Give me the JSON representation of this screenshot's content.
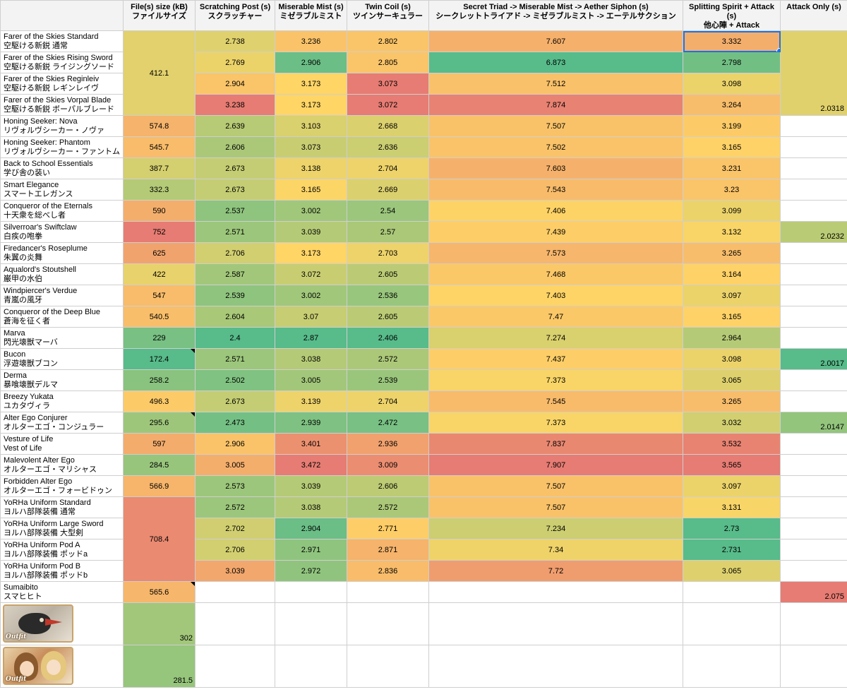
{
  "headers": {
    "name": "",
    "size_line1": "File(s) size (kB)",
    "size_line2": "ファイルサイズ",
    "scratch_line1": "Scratching Post (s)",
    "scratch_line2": "スクラッチャー",
    "mist_line1": "Miserable Mist  (s)",
    "mist_line2": "ミゼラブルミスト",
    "twin_line1": "Twin Coil (s)",
    "twin_line2": "ツインサーキュラー",
    "triad_line1": "Secret Triad -> Miserable Mist -> Aether Siphon (s)",
    "triad_line2": "シークレットトライアド -> ミゼラブルミスト -> エーテルサクション",
    "split_line1": "Splitting Spirit + Attack (s)",
    "split_line2": "他心陣 + Attack",
    "attack_line1": "Attack Only (s)"
  },
  "rows": [
    {
      "name_en": "Farer of the Skies Standard",
      "name_jp": "空駆ける新鋭 通常",
      "scratch": "2.738",
      "mist": "3.236",
      "twin": "2.802",
      "triad": "7.607",
      "split": "3.332"
    },
    {
      "name_en": "Farer of the Skies Rising Sword",
      "name_jp": "空駆ける新鋭 ライジングソード",
      "scratch": "2.769",
      "mist": "2.906",
      "twin": "2.805",
      "triad": "6.873",
      "split": "2.798"
    },
    {
      "name_en": "Farer of the Skies Reginleiv",
      "name_jp": "空駆ける新鋭 レギンレイヴ",
      "scratch": "2.904",
      "mist": "3.173",
      "twin": "3.073",
      "triad": "7.512",
      "split": "3.098"
    },
    {
      "name_en": "Farer of the Skies Vorpal Blade",
      "name_jp": "空駆ける新鋭 ボーパルブレード",
      "scratch": "3.238",
      "mist": "3.173",
      "twin": "3.072",
      "triad": "7.874",
      "split": "3.264"
    },
    {
      "name_en": "Honing Seeker: Nova",
      "name_jp": "リヴォルヴシーカー・ノヴァ",
      "size": "574.8",
      "scratch": "2.639",
      "mist": "3.103",
      "twin": "2.668",
      "triad": "7.507",
      "split": "3.199"
    },
    {
      "name_en": "Honing Seeker: Phantom",
      "name_jp": "リヴォルヴシーカー・ファントム",
      "size": "545.7",
      "scratch": "2.606",
      "mist": "3.073",
      "twin": "2.636",
      "triad": "7.502",
      "split": "3.165"
    },
    {
      "name_en": "Back to School Essentials",
      "name_jp": "学び舎の装い",
      "size": "387.7",
      "scratch": "2.673",
      "mist": "3.138",
      "twin": "2.704",
      "triad": "7.603",
      "split": "3.231"
    },
    {
      "name_en": "Smart Elegance",
      "name_jp": "スマートエレガンス",
      "size": "332.3",
      "scratch": "2.673",
      "mist": "3.165",
      "twin": "2.669",
      "triad": "7.543",
      "split": "3.23"
    },
    {
      "name_en": "Conqueror of the Eternals",
      "name_jp": "十天衆を総べし者",
      "size": "590",
      "scratch": "2.537",
      "mist": "3.002",
      "twin": "2.54",
      "triad": "7.406",
      "split": "3.099"
    },
    {
      "name_en": "Silverroar's Swiftclaw",
      "name_jp": "白疾の咆拳",
      "size": "752",
      "scratch": "2.571",
      "mist": "3.039",
      "twin": "2.57",
      "triad": "7.439",
      "split": "3.132",
      "attack": "2.0232"
    },
    {
      "name_en": "Firedancer's Roseplume",
      "name_jp": "朱翼の炎舞",
      "size": "625",
      "scratch": "2.706",
      "mist": "3.173",
      "twin": "2.703",
      "triad": "7.573",
      "split": "3.265"
    },
    {
      "name_en": "Aqualord's Stoutshell",
      "name_jp": "巌甲の水伯",
      "size": "422",
      "scratch": "2.587",
      "mist": "3.072",
      "twin": "2.605",
      "triad": "7.468",
      "split": "3.164"
    },
    {
      "name_en": "Windpiercer's Verdue",
      "name_jp": "青嵐の風牙",
      "size": "547",
      "scratch": "2.539",
      "mist": "3.002",
      "twin": "2.536",
      "triad": "7.403",
      "split": "3.097"
    },
    {
      "name_en": "Conqueror of the Deep Blue",
      "name_jp": "蒼海を征く者",
      "size": "540.5",
      "scratch": "2.604",
      "mist": "3.07",
      "twin": "2.605",
      "triad": "7.47",
      "split": "3.165"
    },
    {
      "name_en": "Marva",
      "name_jp": "閃光壊獣マーバ",
      "size": "229",
      "scratch": "2.4",
      "mist": "2.87",
      "twin": "2.406",
      "triad": "7.274",
      "split": "2.964"
    },
    {
      "name_en": "Bucon",
      "name_jp": "浮遊壊獣ブコン",
      "size": "172.4",
      "scratch": "2.571",
      "mist": "3.038",
      "twin": "2.572",
      "triad": "7.437",
      "split": "3.098",
      "attack": "2.0017"
    },
    {
      "name_en": "Derma",
      "name_jp": "暴喰壊獣デルマ",
      "size": "258.2",
      "scratch": "2.502",
      "mist": "3.005",
      "twin": "2.539",
      "triad": "7.373",
      "split": "3.065"
    },
    {
      "name_en": "Breezy Yukata",
      "name_jp": "ユカタヴィラ",
      "size": "496.3",
      "scratch": "2.673",
      "mist": "3.139",
      "twin": "2.704",
      "triad": "7.545",
      "split": "3.265"
    },
    {
      "name_en": "Alter Ego Conjurer",
      "name_jp": "オルターエゴ・コンジュラー",
      "size": "295.6",
      "scratch": "2.473",
      "mist": "2.939",
      "twin": "2.472",
      "triad": "7.373",
      "split": "3.032",
      "attack": "2.0147"
    },
    {
      "name_en": "Vesture of Life",
      "name_jp": "Vest of Life",
      "size": "597",
      "scratch": "2.906",
      "mist": "3.401",
      "twin": "2.936",
      "triad": "7.837",
      "split": "3.532"
    },
    {
      "name_en": "Malevolent Alter Ego",
      "name_jp": "オルターエゴ・マリシャス",
      "size": "284.5",
      "scratch": "3.005",
      "mist": "3.472",
      "twin": "3.009",
      "triad": "7.907",
      "split": "3.565"
    },
    {
      "name_en": "Forbidden Alter Ego",
      "name_jp": "オルターエゴ・フォービドゥン",
      "size": "566.9",
      "scratch": "2.573",
      "mist": "3.039",
      "twin": "2.606",
      "triad": "7.507",
      "split": "3.097"
    },
    {
      "name_en": "YoRHa Uniform Standard",
      "name_jp": "ヨルハ部隊装備 通常",
      "scratch": "2.572",
      "mist": "3.038",
      "twin": "2.572",
      "triad": "7.507",
      "split": "3.131"
    },
    {
      "name_en": "YoRHa Uniform Large Sword",
      "name_jp": "ヨルハ部隊装備 大型剣",
      "scratch": "2.702",
      "mist": "2.904",
      "twin": "2.771",
      "triad": "7.234",
      "split": "2.73"
    },
    {
      "name_en": "YoRHa Uniform Pod A",
      "name_jp": "ヨルハ部隊装備 ポッドa",
      "scratch": "2.706",
      "mist": "2.971",
      "twin": "2.871",
      "triad": "7.34",
      "split": "2.731"
    },
    {
      "name_en": "YoRHa Uniform Pod B",
      "name_jp": "ヨルハ部隊装備 ポッドb",
      "scratch": "3.039",
      "mist": "2.972",
      "twin": "2.836",
      "triad": "7.72",
      "split": "3.065"
    },
    {
      "name_en": "Sumaibito",
      "name_jp": "スマヒヒト",
      "size": "565.6",
      "attack": "2.075"
    }
  ],
  "merged": {
    "farer_size": "412.1",
    "farer_attack": "2.0318",
    "yorha_size": "708.4"
  },
  "images": [
    {
      "icon": "outfit-bird-thumbnail-icon",
      "badge": "Outfit",
      "size": "302"
    },
    {
      "icon": "outfit-girls-thumbnail-icon",
      "badge": "Outfit",
      "size": "281.5"
    }
  ],
  "colors": {
    "header_bg": "#f3f3f3",
    "selection": "#1a73e8"
  }
}
